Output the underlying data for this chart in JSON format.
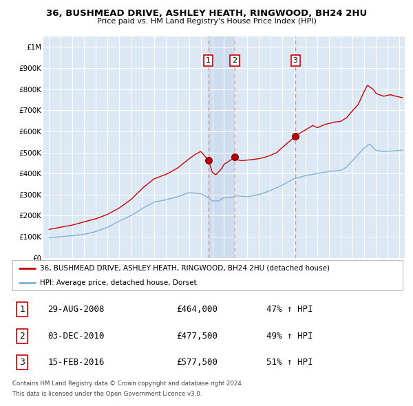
{
  "title": "36, BUSHMEAD DRIVE, ASHLEY HEATH, RINGWOOD, BH24 2HU",
  "subtitle": "Price paid vs. HM Land Registry's House Price Index (HPI)",
  "legend_house": "36, BUSHMEAD DRIVE, ASHLEY HEATH, RINGWOOD, BH24 2HU (detached house)",
  "legend_hpi": "HPI: Average price, detached house, Dorset",
  "footnote1": "Contains HM Land Registry data © Crown copyright and database right 2024.",
  "footnote2": "This data is licensed under the Open Government Licence v3.0.",
  "transactions": [
    {
      "num": 1,
      "date": "29-AUG-2008",
      "price": 464000,
      "pct": "47% ↑ HPI",
      "x_year": 2008.66
    },
    {
      "num": 2,
      "date": "03-DEC-2010",
      "price": 477500,
      "pct": "49% ↑ HPI",
      "x_year": 2010.92
    },
    {
      "num": 3,
      "date": "15-FEB-2016",
      "price": 577500,
      "pct": "51% ↑ HPI",
      "x_year": 2016.12
    }
  ],
  "house_color": "#cc0000",
  "hpi_color": "#7fb3d3",
  "vline_color": "#ee8888",
  "shade_color": "#c8d8ee",
  "plot_bg": "#dce8f4",
  "grid_color": "#ffffff",
  "ylim": [
    0,
    1050000
  ],
  "xlim_start": 1994.5,
  "xlim_end": 2025.5,
  "fig_bg": "#ffffff"
}
